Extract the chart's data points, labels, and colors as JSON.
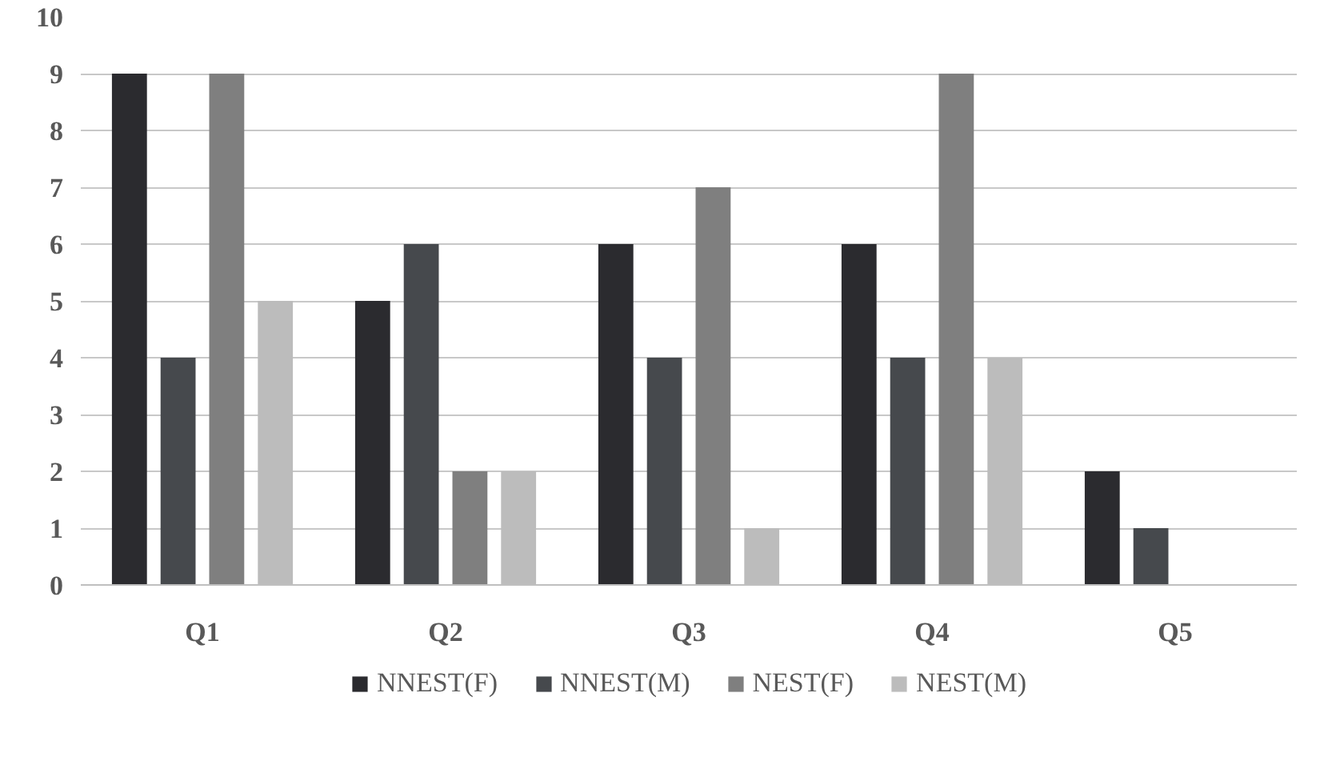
{
  "chart_data": {
    "type": "bar",
    "categories": [
      "Q1",
      "Q2",
      "Q3",
      "Q4",
      "Q5"
    ],
    "series": [
      {
        "name": "NNEST(F)",
        "color": "#2b2b2f",
        "values": [
          9,
          5,
          6,
          6,
          2
        ]
      },
      {
        "name": "NNEST(M)",
        "color": "#46494d",
        "values": [
          4,
          6,
          4,
          4,
          1
        ]
      },
      {
        "name": "NEST(F)",
        "color": "#7f7f7f",
        "values": [
          9,
          2,
          7,
          9,
          0
        ]
      },
      {
        "name": "NEST(M)",
        "color": "#bcbcbc",
        "values": [
          5,
          2,
          1,
          4,
          0
        ]
      }
    ],
    "ylim": [
      0,
      10
    ],
    "yticks": [
      0,
      1,
      2,
      3,
      4,
      5,
      6,
      7,
      8,
      9,
      10
    ],
    "grid": "y",
    "legend": "bottom"
  }
}
